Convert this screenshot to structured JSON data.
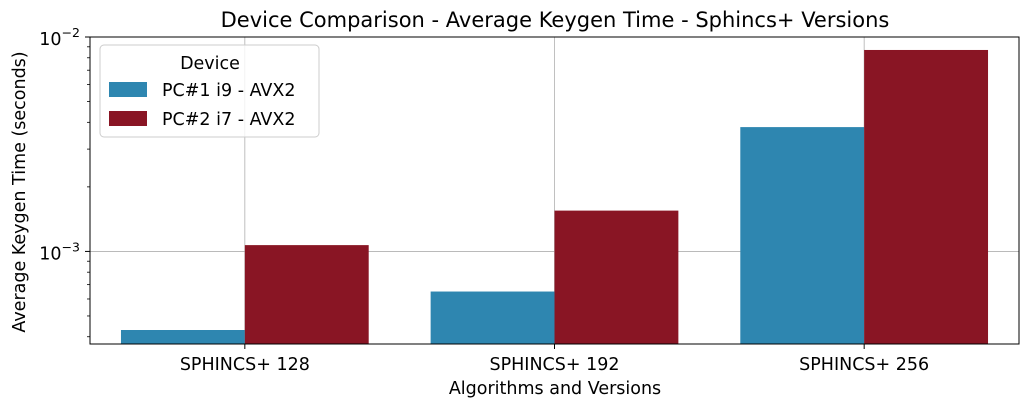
{
  "chart_data": {
    "type": "bar",
    "title": "Device Comparison - Average Keygen Time - Sphincs+ Versions",
    "xlabel": "Algorithms and Versions",
    "ylabel": "Average Keygen Time (seconds)",
    "yscale": "log",
    "ylim": [
      0.00037,
      0.01
    ],
    "grid": true,
    "legend_position": "top-left",
    "legend_title": "Device",
    "categories": [
      "SPHINCS+ 128",
      "SPHINCS+ 192",
      "SPHINCS+ 256"
    ],
    "series": [
      {
        "name": "PC#1 i9 - AVX2",
        "color": "#2e86b0",
        "values": [
          0.00043,
          0.00065,
          0.0038
        ]
      },
      {
        "name": "PC#2 i7 - AVX2",
        "color": "#891524",
        "values": [
          0.00107,
          0.00155,
          0.0087
        ]
      }
    ],
    "y_ticks": [
      {
        "value": 0.01,
        "base": "10",
        "exp": "−2"
      },
      {
        "value": 0.001,
        "base": "10",
        "exp": "−3"
      }
    ]
  }
}
